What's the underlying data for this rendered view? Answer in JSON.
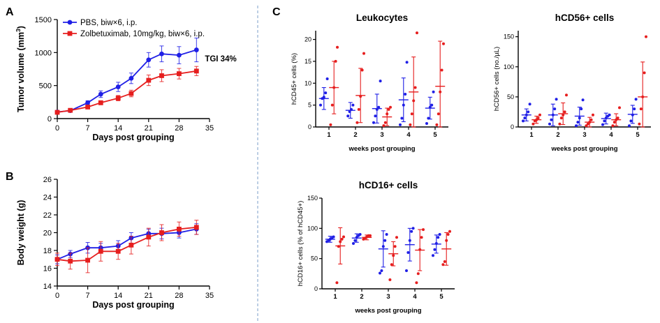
{
  "colors": {
    "control": "#1f1fe6",
    "treatment": "#e61e1e",
    "divider": "#7a9cc9"
  },
  "panels": {
    "a": "A",
    "b": "B",
    "c": "C"
  },
  "chart_data": [
    {
      "id": "A",
      "type": "line",
      "title": "",
      "xlabel": "Days post grouping",
      "ylabel": "Tumor volume (mm³)",
      "ylabel_main": "Tumor volume (mm",
      "ylabel_sup": "3",
      "ylabel_end": ")",
      "xlim": [
        0,
        35
      ],
      "ylim": [
        0,
        1500
      ],
      "xticks": [
        0,
        7,
        14,
        21,
        28,
        35
      ],
      "yticks": [
        0,
        500,
        1000,
        1500
      ],
      "legend_position": "top-left",
      "annotation": "TGI 34%",
      "series": [
        {
          "name": "PBS, biw×6, i.p.",
          "color": "#1f1fe6",
          "marker": "circle",
          "x": [
            0,
            3,
            7,
            10,
            14,
            17,
            21,
            24,
            28,
            32
          ],
          "y": [
            100,
            120,
            240,
            370,
            480,
            610,
            890,
            980,
            960,
            1040
          ],
          "err": [
            15,
            20,
            30,
            50,
            70,
            80,
            110,
            120,
            130,
            180
          ]
        },
        {
          "name": "Zolbetuximab, 10mg/kg, biw×6, i.p.",
          "color": "#e61e1e",
          "marker": "square",
          "x": [
            0,
            3,
            7,
            10,
            14,
            17,
            21,
            24,
            28,
            32
          ],
          "y": [
            95,
            125,
            175,
            240,
            310,
            380,
            580,
            650,
            680,
            720
          ],
          "err": [
            15,
            20,
            25,
            30,
            40,
            50,
            80,
            90,
            80,
            70
          ]
        }
      ]
    },
    {
      "id": "B",
      "type": "line",
      "title": "",
      "xlabel": "Days post grouping",
      "ylabel": "Body weight (g)",
      "xlim": [
        0,
        35
      ],
      "ylim": [
        14,
        26
      ],
      "xticks": [
        0,
        7,
        14,
        21,
        28,
        35
      ],
      "yticks": [
        14,
        16,
        18,
        20,
        22,
        24,
        26
      ],
      "series": [
        {
          "name": "PBS, biw×6, i.p.",
          "color": "#1f1fe6",
          "marker": "circle",
          "x": [
            0,
            3,
            7,
            10,
            14,
            17,
            21,
            24,
            28,
            32
          ],
          "y": [
            17.0,
            17.6,
            18.3,
            18.3,
            18.5,
            19.4,
            19.9,
            19.9,
            20.0,
            20.4
          ],
          "err": [
            0.5,
            0.4,
            0.6,
            0.5,
            0.6,
            0.6,
            0.5,
            0.6,
            0.6,
            0.6
          ]
        },
        {
          "name": "Zolbetuximab, 10mg/kg, biw×6, i.p.",
          "color": "#e61e1e",
          "marker": "square",
          "x": [
            0,
            3,
            7,
            10,
            14,
            17,
            21,
            24,
            28,
            32
          ],
          "y": [
            17.0,
            16.8,
            16.9,
            17.9,
            17.9,
            18.6,
            19.5,
            20.0,
            20.4,
            20.6
          ],
          "err": [
            0.7,
            0.9,
            1.4,
            1.1,
            0.9,
            1.0,
            1.0,
            0.9,
            0.8,
            0.8
          ]
        }
      ]
    },
    {
      "id": "C1",
      "type": "scatter",
      "title": "Leukocytes",
      "xlabel": "weeks post grouping",
      "ylabel": "hCD45+ cells (%)",
      "categories": [
        "1",
        "2",
        "3",
        "4",
        "5"
      ],
      "ylim": [
        0,
        22
      ],
      "yticks": [
        0,
        5,
        10,
        15,
        20
      ],
      "groups": [
        {
          "color": "#1f1fe6",
          "mean": [
            6.5,
            3.8,
            4.2,
            6.2,
            4.3
          ],
          "sd": [
            2.5,
            1.8,
            3.3,
            5.0,
            2.5
          ],
          "points": [
            [
              5.0,
              6.5,
              6.8,
              7.8,
              11.0
            ],
            [
              2.5,
              3.5,
              4.0,
              5.0
            ],
            [
              1.0,
              2.5,
              4.0,
              4.5,
              10.5
            ],
            [
              0.5,
              2.0,
              5.0,
              7.5,
              14.8
            ],
            [
              0.8,
              2.0,
              4.5,
              5.0,
              8.0
            ]
          ]
        },
        {
          "color": "#e61e1e",
          "mean": [
            9.0,
            7.2,
            2.3,
            8.0,
            9.3
          ],
          "sd": [
            6.0,
            6.2,
            2.0,
            8.0,
            10.3
          ],
          "points": [
            [
              0.5,
              5.0,
              9.0,
              15.0,
              18.2
            ],
            [
              1.0,
              4.0,
              7.0,
              13.0,
              16.8
            ],
            [
              0.3,
              1.0,
              3.0,
              4.0,
              4.5
            ],
            [
              0.5,
              3.0,
              6.0,
              9.0,
              21.5
            ],
            [
              0.5,
              3.0,
              8.0,
              13.0,
              19.0
            ]
          ]
        }
      ]
    },
    {
      "id": "C2",
      "type": "scatter",
      "title": "hCD56+ cells",
      "xlabel": "weeks post grouping",
      "ylabel": "hCD56+ cells (no./µL)",
      "categories": [
        "1",
        "2",
        "3",
        "4",
        "5"
      ],
      "ylim": [
        0,
        160
      ],
      "yticks": [
        0,
        50,
        100,
        150
      ],
      "groups": [
        {
          "color": "#1f1fe6",
          "mean": [
            20,
            20,
            18,
            14,
            21
          ],
          "sd": [
            10,
            18,
            15,
            9,
            15
          ],
          "points": [
            [
              10,
              15,
              20,
              25,
              38
            ],
            [
              5,
              12,
              20,
              30,
              46
            ],
            [
              2,
              8,
              15,
              30,
              45
            ],
            [
              4,
              10,
              15,
              18,
              20
            ],
            [
              2,
              10,
              20,
              30,
              46
            ]
          ]
        },
        {
          "color": "#e61e1e",
          "mean": [
            12,
            22,
            8,
            12,
            50
          ],
          "sd": [
            6,
            18,
            8,
            10,
            58
          ],
          "points": [
            [
              5,
              10,
              12,
              15,
              20
            ],
            [
              5,
              15,
              20,
              25,
              53
            ],
            [
              2,
              5,
              8,
              12,
              20
            ],
            [
              2,
              8,
              12,
              15,
              32
            ],
            [
              5,
              30,
              50,
              90,
              150
            ]
          ]
        }
      ]
    },
    {
      "id": "C3",
      "type": "scatter",
      "title": "hCD16+ cells",
      "xlabel": "weeks post grouping",
      "ylabel": "hCD16+ cells (% of hCD45+)",
      "categories": [
        "1",
        "2",
        "3",
        "4",
        "5"
      ],
      "ylim": [
        0,
        150
      ],
      "yticks": [
        0,
        50,
        100,
        150
      ],
      "groups": [
        {
          "color": "#1f1fe6",
          "mean": [
            82,
            84,
            66,
            73,
            74
          ],
          "sd": [
            5,
            7,
            30,
            27,
            15
          ],
          "points": [
            [
              78,
              80,
              82,
              84,
              86
            ],
            [
              75,
              80,
              85,
              88,
              90
            ],
            [
              26,
              30,
              70,
              80,
              90
            ],
            [
              30,
              60,
              80,
              95,
              100
            ],
            [
              55,
              65,
              75,
              85,
              90
            ]
          ]
        },
        {
          "color": "#e61e1e",
          "mean": [
            71,
            85,
            58,
            64,
            66
          ],
          "sd": [
            30,
            4,
            20,
            34,
            27
          ],
          "points": [
            [
              10,
              70,
              78,
              82,
              86
            ],
            [
              82,
              84,
              86,
              88,
              88
            ],
            [
              15,
              40,
              55,
              70,
              85
            ],
            [
              10,
              25,
              65,
              85,
              98
            ],
            [
              40,
              45,
              80,
              90,
              95
            ]
          ]
        }
      ]
    }
  ]
}
